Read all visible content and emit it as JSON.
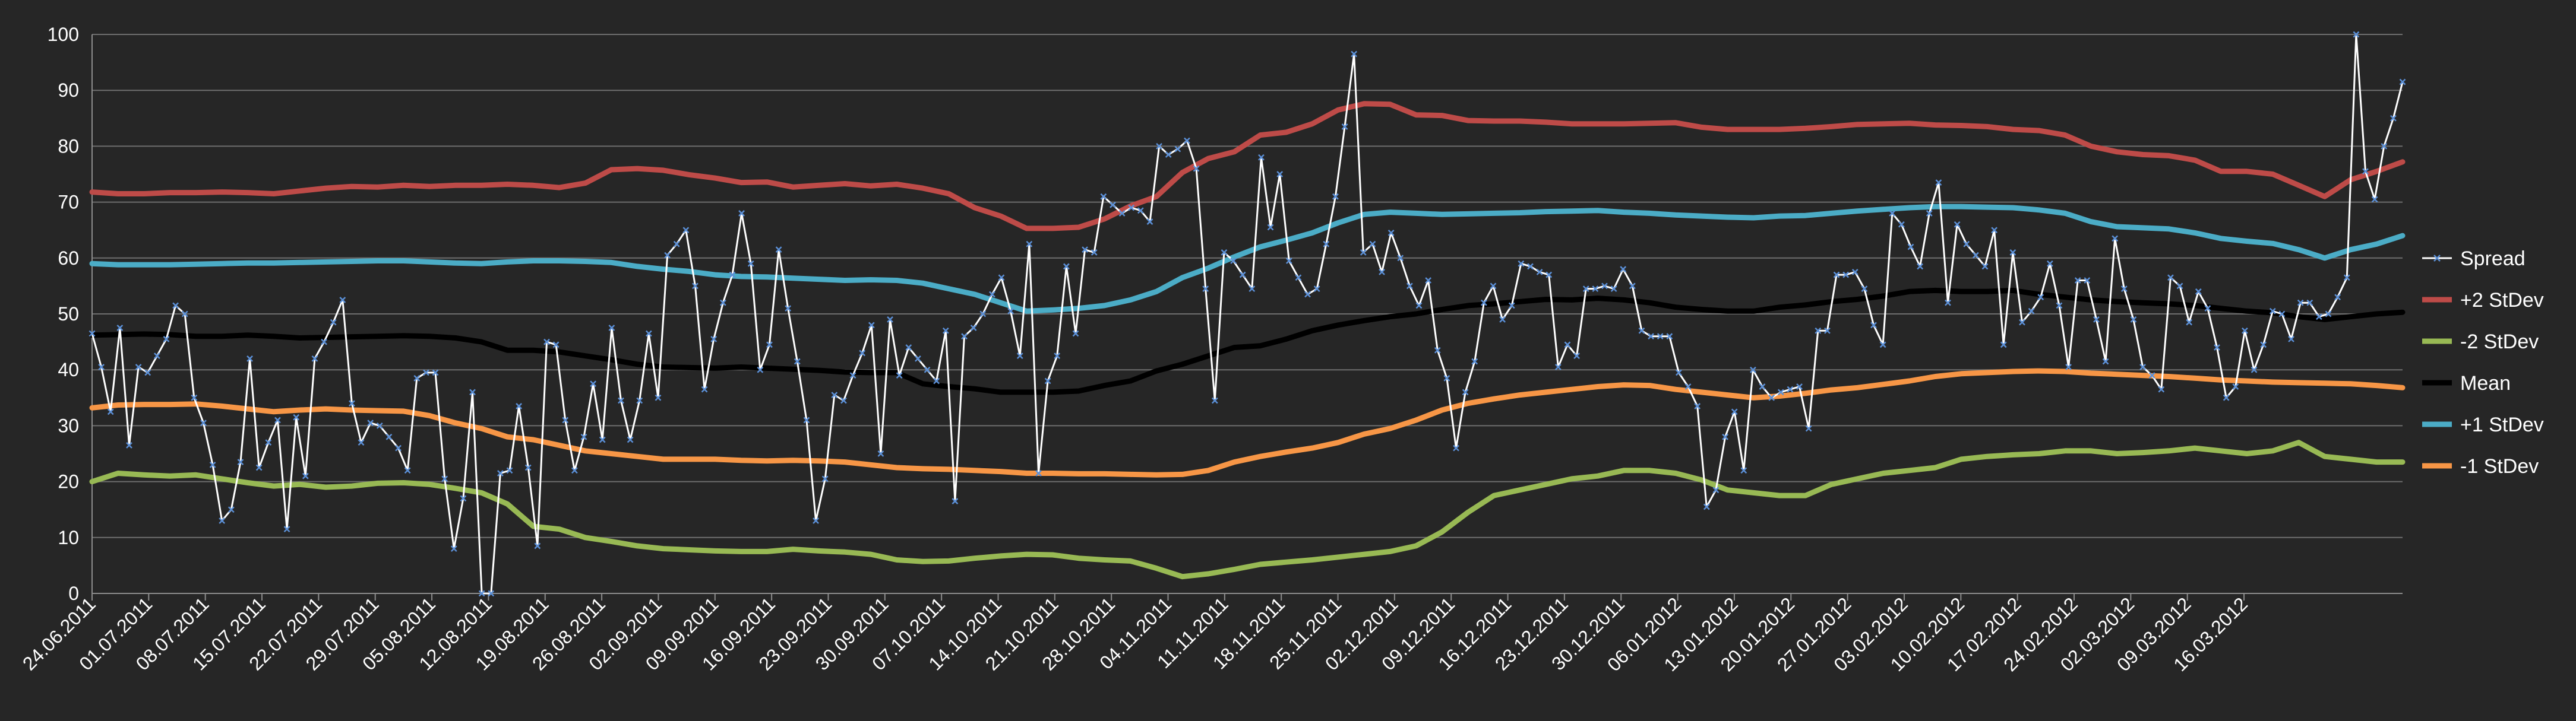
{
  "chart_data": {
    "type": "line",
    "title": "",
    "xlabel": "",
    "ylabel": "",
    "ylim": [
      0,
      100
    ],
    "y_ticks": [
      "0",
      "10",
      "20",
      "30",
      "40",
      "50",
      "60",
      "70",
      "80",
      "90",
      "100"
    ],
    "x_tick_labels": [
      "24.06.2011",
      "01.07.2011",
      "08.07.2011",
      "15.07.2011",
      "22.07.2011",
      "29.07.2011",
      "05.08.2011",
      "12.08.2011",
      "19.08.2011",
      "26.08.2011",
      "02.09.2011",
      "09.09.2011",
      "16.09.2011",
      "23.09.2011",
      "30.09.2011",
      "07.10.2011",
      "14.10.2011",
      "21.10.2011",
      "28.10.2011",
      "04.11.2011",
      "11.11.2011",
      "18.11.2011",
      "25.11.2011",
      "02.12.2011",
      "09.12.2011",
      "16.12.2011",
      "23.12.2011",
      "30.12.2011",
      "06.01.2012",
      "13.01.2012",
      "20.01.2012",
      "27.01.2012",
      "03.02.2012",
      "10.02.2012",
      "17.02.2012",
      "24.02.2012",
      "02.03.2012",
      "09.03.2012",
      "16.03.2012"
    ],
    "grid": "horizontal",
    "legend_position": "right",
    "background": "#262626",
    "x_points_per_week": 5,
    "series": [
      {
        "name": "Spread",
        "color": "#ffffff",
        "marker": "x-marker",
        "values": [
          46.5,
          40.5,
          32.5,
          47.5,
          26.5,
          40.5,
          39.5,
          42.5,
          45.5,
          51.5,
          50.0,
          35.0,
          30.5,
          23.0,
          13.0,
          15.0,
          23.5,
          42.0,
          22.5,
          27.0,
          31.0,
          11.5,
          31.5,
          21.0,
          42.0,
          45.0,
          48.5,
          52.5,
          34.0,
          27.0,
          30.5,
          30.0,
          28.0,
          26.0,
          22.0,
          38.5,
          39.5,
          39.5,
          20.5,
          8.0,
          17.0,
          36.0,
          0.0,
          0.0,
          21.5,
          22.0,
          33.5,
          22.5,
          8.5,
          45.0,
          44.5,
          31.0,
          22.0,
          28.0,
          37.5,
          27.5,
          47.5,
          34.5,
          27.5,
          34.5,
          46.5,
          35.0,
          60.5,
          62.5,
          65.0,
          55.0,
          36.5,
          45.5,
          52.0,
          57.0,
          68.0,
          59.0,
          40.0,
          44.5,
          61.5,
          51.0,
          41.5,
          31.0,
          13.0,
          20.5,
          35.5,
          34.5,
          39.0,
          43.0,
          48.0,
          25.0,
          49.0,
          39.0,
          44.0,
          42.0,
          40.0,
          38.0,
          47.0,
          16.5,
          46.0,
          47.5,
          50.0,
          53.5,
          56.5,
          50.5,
          42.5,
          62.5,
          21.5,
          38.0,
          42.5,
          58.5,
          46.5,
          61.5,
          61.0,
          71.0,
          69.5,
          68.0,
          69.0,
          68.5,
          66.5,
          80.0,
          78.5,
          79.5,
          81.0,
          76.0,
          54.5,
          34.5,
          61.0,
          59.5,
          57.0,
          54.5,
          78.0,
          65.5,
          75.0,
          59.5,
          56.5,
          53.5,
          54.5,
          62.5,
          71.0,
          83.5,
          96.5,
          61.0,
          62.5,
          57.5,
          64.5,
          60.0,
          55.0,
          51.5,
          56.0,
          43.5,
          38.5,
          26.0,
          36.0,
          41.5,
          52.0,
          55.0,
          49.0,
          51.5,
          59.0,
          58.5,
          57.5,
          57.0,
          40.5,
          44.5,
          42.5,
          54.5,
          54.5,
          55.0,
          54.5,
          58.0,
          55.0,
          47.0,
          46.0,
          46.0,
          46.0,
          39.5,
          37.0,
          33.5,
          15.5,
          18.5,
          28.0,
          32.5,
          22.0,
          40.0,
          37.0,
          35.0,
          36.0,
          36.5,
          37.0,
          29.5,
          47.0,
          47.0,
          57.0,
          57.0,
          57.5,
          54.5,
          48.0,
          44.5,
          68.0,
          66.0,
          62.0,
          58.5,
          68.0,
          73.5,
          52.0,
          66.0,
          62.5,
          60.5,
          58.5,
          65.0,
          44.5,
          61.0,
          48.5,
          50.5,
          53.0,
          59.0,
          51.5,
          40.5,
          56.0,
          56.0,
          49.0,
          41.5,
          63.5,
          54.5,
          49.0,
          40.5,
          39.0,
          36.5,
          56.5,
          55.0,
          48.5,
          54.0,
          51.0,
          44.0,
          35.0,
          37.0,
          47.0,
          40.0,
          44.5,
          50.5,
          50.0,
          45.5,
          52.0,
          52.0,
          49.5,
          50.0,
          53.0,
          56.5,
          100.0,
          75.5,
          70.5,
          80.0,
          85.0,
          91.5
        ]
      },
      {
        "name": "+2 StDev",
        "color": "#be4b48",
        "values": [
          71.8,
          71.5,
          71.5,
          71.7,
          71.7,
          71.8,
          71.7,
          71.5,
          72.0,
          72.5,
          72.8,
          72.7,
          73.0,
          72.8,
          73.0,
          73.0,
          73.2,
          73.0,
          72.6,
          73.4,
          75.8,
          76.0,
          75.7,
          74.9,
          74.3,
          73.5,
          73.6,
          72.7,
          73.0,
          73.3,
          72.9,
          73.2,
          72.5,
          71.5,
          69.0,
          67.5,
          65.3,
          65.3,
          65.5,
          67.0,
          69.3,
          71.0,
          75.3,
          77.8,
          79.0,
          82.0,
          82.5,
          84.0,
          86.5,
          87.6,
          87.5,
          85.6,
          85.5,
          84.6,
          84.5,
          84.5,
          84.3,
          84.0,
          84.0,
          84.0,
          84.1,
          84.2,
          83.4,
          83.0,
          83.0,
          83.0,
          83.2,
          83.5,
          83.9,
          84.0,
          84.1,
          83.8,
          83.7,
          83.5,
          83.0,
          82.8,
          82.0,
          80.0,
          79.0,
          78.5,
          78.3,
          77.5,
          75.5,
          75.5,
          75.0,
          73.0,
          71.0,
          74.0,
          75.5,
          77.2
        ]
      },
      {
        "name": "-2 StDev",
        "color": "#98b954",
        "values": [
          20.0,
          21.5,
          21.2,
          21.0,
          21.2,
          20.5,
          19.8,
          19.2,
          19.5,
          19.0,
          19.2,
          19.7,
          19.8,
          19.5,
          18.8,
          18.0,
          16.0,
          12.0,
          11.5,
          10.0,
          9.3,
          8.5,
          8.0,
          7.8,
          7.6,
          7.5,
          7.5,
          7.9,
          7.6,
          7.4,
          7.0,
          6.0,
          5.7,
          5.8,
          6.3,
          6.7,
          7.0,
          6.9,
          6.3,
          6.0,
          5.8,
          4.5,
          3.0,
          3.5,
          4.3,
          5.2,
          5.6,
          6.0,
          6.5,
          7.0,
          7.5,
          8.5,
          11.0,
          14.5,
          17.5,
          18.5,
          19.5,
          20.5,
          21.0,
          22.0,
          22.0,
          21.5,
          20.3,
          18.5,
          18.0,
          17.5,
          17.5,
          19.5,
          20.5,
          21.5,
          22.0,
          22.5,
          24.0,
          24.5,
          24.8,
          25.0,
          25.5,
          25.5,
          25.0,
          25.2,
          25.5,
          26.0,
          25.5,
          25.0,
          25.5,
          27.0,
          24.5,
          24.0,
          23.5,
          23.5
        ]
      },
      {
        "name": "Mean",
        "color": "#000000",
        "values": [
          46.2,
          46.3,
          46.4,
          46.3,
          46.0,
          46.0,
          46.2,
          46.0,
          45.7,
          45.8,
          45.9,
          46.0,
          46.1,
          46.0,
          45.7,
          45.0,
          43.5,
          43.5,
          43.2,
          42.5,
          41.8,
          41.0,
          40.5,
          40.4,
          40.3,
          40.5,
          40.3,
          40.1,
          39.9,
          39.6,
          39.5,
          39.5,
          37.5,
          37.0,
          36.6,
          36.0,
          36.0,
          36.0,
          36.2,
          37.2,
          38.0,
          39.8,
          41.0,
          42.5,
          44.0,
          44.3,
          45.5,
          47.0,
          48.0,
          48.8,
          49.5,
          50.0,
          50.8,
          51.5,
          51.8,
          52.2,
          52.6,
          52.5,
          52.8,
          52.5,
          52.0,
          51.2,
          50.8,
          50.5,
          50.5,
          51.2,
          51.6,
          52.2,
          52.6,
          53.2,
          54.0,
          54.2,
          54.0,
          54.0,
          54.2,
          53.5,
          53.0,
          52.5,
          52.2,
          52.0,
          51.8,
          51.5,
          51.0,
          50.5,
          50.2,
          49.5,
          49.0,
          49.5,
          50.0,
          50.3
        ]
      },
      {
        "name": "+1 StDev",
        "color": "#4bacc6",
        "values": [
          59.0,
          58.8,
          58.8,
          58.8,
          58.9,
          59.0,
          59.1,
          59.1,
          59.2,
          59.3,
          59.4,
          59.5,
          59.5,
          59.3,
          59.1,
          59.0,
          59.3,
          59.5,
          59.5,
          59.4,
          59.2,
          58.5,
          58.0,
          57.6,
          57.0,
          56.7,
          56.6,
          56.4,
          56.2,
          56.0,
          56.1,
          56.0,
          55.5,
          54.5,
          53.5,
          52.0,
          50.5,
          50.7,
          51.0,
          51.5,
          52.5,
          54.0,
          56.5,
          58.2,
          60.2,
          62.0,
          63.2,
          64.5,
          66.3,
          67.8,
          68.2,
          68.0,
          67.8,
          67.9,
          68.0,
          68.1,
          68.3,
          68.4,
          68.5,
          68.2,
          68.0,
          67.7,
          67.5,
          67.3,
          67.2,
          67.5,
          67.6,
          68.0,
          68.4,
          68.7,
          69.0,
          69.2,
          69.2,
          69.1,
          69.0,
          68.6,
          68.0,
          66.5,
          65.6,
          65.4,
          65.2,
          64.5,
          63.5,
          63.0,
          62.6,
          61.5,
          60.0,
          61.5,
          62.5,
          64.0
        ]
      },
      {
        "name": "-1 StDev",
        "color": "#f79646",
        "values": [
          33.2,
          33.7,
          33.8,
          33.8,
          33.9,
          33.5,
          33.0,
          32.5,
          32.8,
          33.0,
          32.8,
          32.7,
          32.6,
          31.8,
          30.5,
          29.5,
          28.0,
          27.5,
          26.5,
          25.5,
          25.0,
          24.5,
          24.0,
          24.0,
          24.0,
          23.8,
          23.7,
          23.8,
          23.7,
          23.5,
          23.0,
          22.5,
          22.3,
          22.2,
          22.0,
          21.8,
          21.5,
          21.5,
          21.4,
          21.4,
          21.3,
          21.2,
          21.3,
          22.0,
          23.5,
          24.5,
          25.3,
          26.0,
          27.0,
          28.5,
          29.5,
          31.0,
          32.8,
          34.0,
          34.8,
          35.5,
          36.0,
          36.5,
          37.0,
          37.3,
          37.2,
          36.5,
          36.0,
          35.5,
          35.0,
          35.3,
          35.8,
          36.4,
          36.8,
          37.4,
          38.0,
          38.8,
          39.3,
          39.5,
          39.7,
          39.8,
          39.7,
          39.4,
          39.2,
          39.0,
          38.8,
          38.5,
          38.2,
          38.0,
          37.8,
          37.7,
          37.6,
          37.5,
          37.2,
          36.8
        ]
      }
    ]
  }
}
